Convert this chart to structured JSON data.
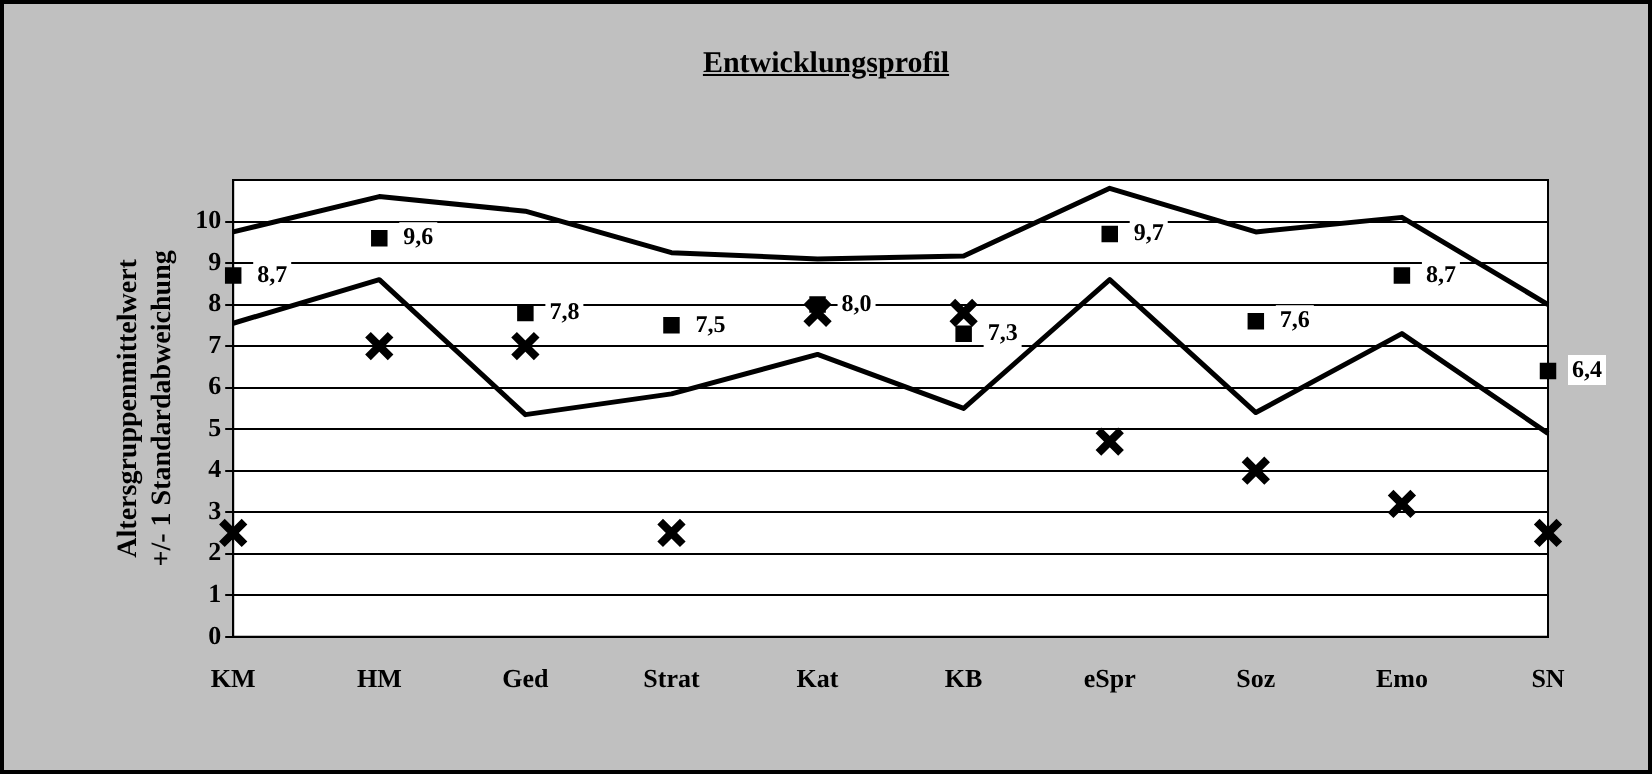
{
  "chart_data": {
    "type": "line",
    "title": "Entwicklungsprofil",
    "ylabel": "Altersgruppenmittelwert\n+/- 1 Standardabweichung",
    "categories": [
      "KM",
      "HM",
      "Ged",
      "Strat",
      "Kat",
      "KB",
      "eSpr",
      "Soz",
      "Emo",
      "SN"
    ],
    "ylim": [
      0,
      11
    ],
    "yticks": [
      0,
      1,
      2,
      3,
      4,
      5,
      6,
      7,
      8,
      9,
      10
    ],
    "grid": "y",
    "legend": false,
    "series": [
      {
        "type": "line",
        "color": "#000000",
        "marker": "none",
        "values": [
          9.75,
          10.6,
          10.25,
          9.25,
          9.1,
          9.17,
          10.8,
          9.75,
          10.1,
          8.0
        ]
      },
      {
        "type": "line",
        "color": "#000000",
        "marker": "none",
        "values": [
          7.55,
          8.6,
          5.35,
          5.85,
          6.8,
          5.5,
          8.6,
          5.4,
          7.3,
          4.9
        ]
      },
      {
        "type": "scatter",
        "color": "#000000",
        "marker": "square",
        "x": [
          "KM",
          "HM",
          "Ged",
          "Strat",
          "Kat",
          "KB",
          "eSpr",
          "Soz",
          "Emo",
          "SN"
        ],
        "values": [
          8.7,
          9.6,
          7.8,
          7.5,
          8.0,
          7.3,
          9.7,
          7.6,
          8.7,
          6.4
        ],
        "value_labels": [
          "8,7",
          "9,6",
          "7,8",
          "7,5",
          "8,0",
          "7,3",
          "9,7",
          "7,6",
          "8,7",
          "6,4"
        ]
      },
      {
        "type": "scatter",
        "color": "#000000",
        "marker": "cross",
        "x": [
          "KM",
          "HM",
          "Ged",
          "Strat",
          "Kat",
          "KB",
          "eSpr",
          "Soz",
          "Emo",
          "SN"
        ],
        "values": [
          2.5,
          7.0,
          7.0,
          2.5,
          7.8,
          7.8,
          4.7,
          4.0,
          3.2,
          2.5
        ]
      }
    ]
  }
}
